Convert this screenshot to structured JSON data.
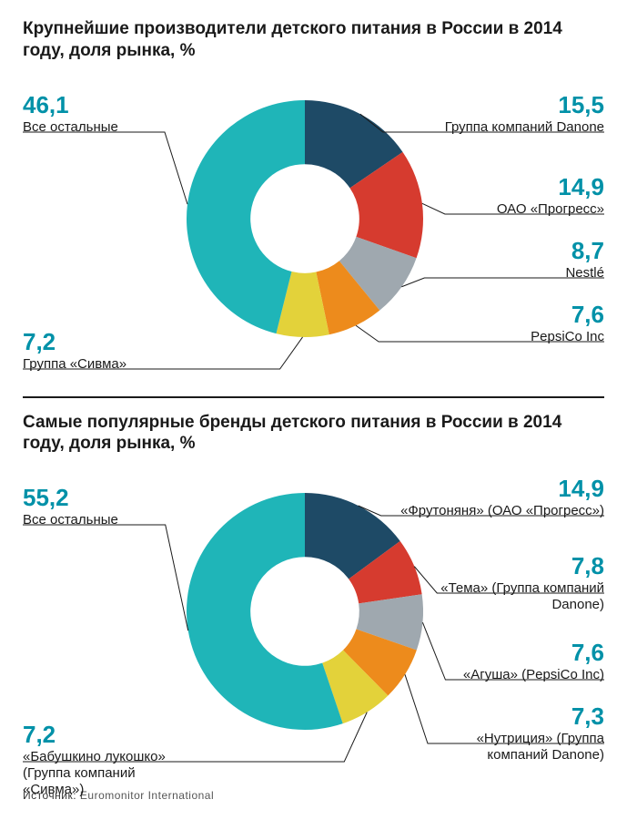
{
  "chart1": {
    "type": "donut",
    "title": "Крупнейшие производители детского питания в России в 2014 году, доля рынка, %",
    "inner_radius_pct": 0.46,
    "background_color": "#ffffff",
    "value_color": "#0091a8",
    "label_color": "#1a1a1a",
    "title_fontsize": 19,
    "value_fontsize": 26,
    "label_fontsize": 15,
    "start_angle_deg": 0,
    "slices": [
      {
        "id": "danone",
        "value": 15.5,
        "label": "Группа компаний Danone",
        "color": "#1e4a66",
        "side": "right"
      },
      {
        "id": "progress",
        "value": 14.9,
        "label": "ОАО «Прогресс»",
        "color": "#d63b2f",
        "side": "right"
      },
      {
        "id": "nestle",
        "value": 8.7,
        "label": "Nestlé",
        "color": "#9fa8af",
        "side": "right"
      },
      {
        "id": "pepsico",
        "value": 7.6,
        "label": "PepsiCo Inc",
        "color": "#ed8b1c",
        "side": "right"
      },
      {
        "id": "sivma",
        "value": 7.2,
        "label": "Группа «Сивма»",
        "color": "#e3d23a",
        "side": "left"
      },
      {
        "id": "others",
        "value": 46.1,
        "label": "Все остальные",
        "color": "#1fb5b8",
        "side": "left"
      }
    ]
  },
  "chart2": {
    "type": "donut",
    "title": "Самые популярные бренды детского питания в России в 2014 году, доля рынка, %",
    "inner_radius_pct": 0.46,
    "background_color": "#ffffff",
    "value_color": "#0091a8",
    "label_color": "#1a1a1a",
    "title_fontsize": 19,
    "value_fontsize": 26,
    "label_fontsize": 15,
    "start_angle_deg": 0,
    "slices": [
      {
        "id": "frutonyanya",
        "value": 14.9,
        "label": "«Фрутоняня» (ОАО «Прогресс»)",
        "color": "#1e4a66",
        "side": "right"
      },
      {
        "id": "tema",
        "value": 7.8,
        "label": "«Тема» (Группа компаний Danone)",
        "color": "#d63b2f",
        "side": "right"
      },
      {
        "id": "agusha",
        "value": 7.6,
        "label": "«Агуша» (PepsiCo Inc)",
        "color": "#9fa8af",
        "side": "right"
      },
      {
        "id": "nutricia",
        "value": 7.3,
        "label": "«Нутриция» (Группа компаний Danone)",
        "color": "#ed8b1c",
        "side": "right"
      },
      {
        "id": "lukoshko",
        "value": 7.2,
        "label": "«Бабушкино лукошко» (Группа компаний «Сивма»)",
        "color": "#e3d23a",
        "side": "left"
      },
      {
        "id": "others",
        "value": 55.2,
        "label": "Все остальные",
        "color": "#1fb5b8",
        "side": "left"
      }
    ]
  },
  "source": {
    "prefix": "Источник:",
    "text": "Euromonitor International"
  }
}
